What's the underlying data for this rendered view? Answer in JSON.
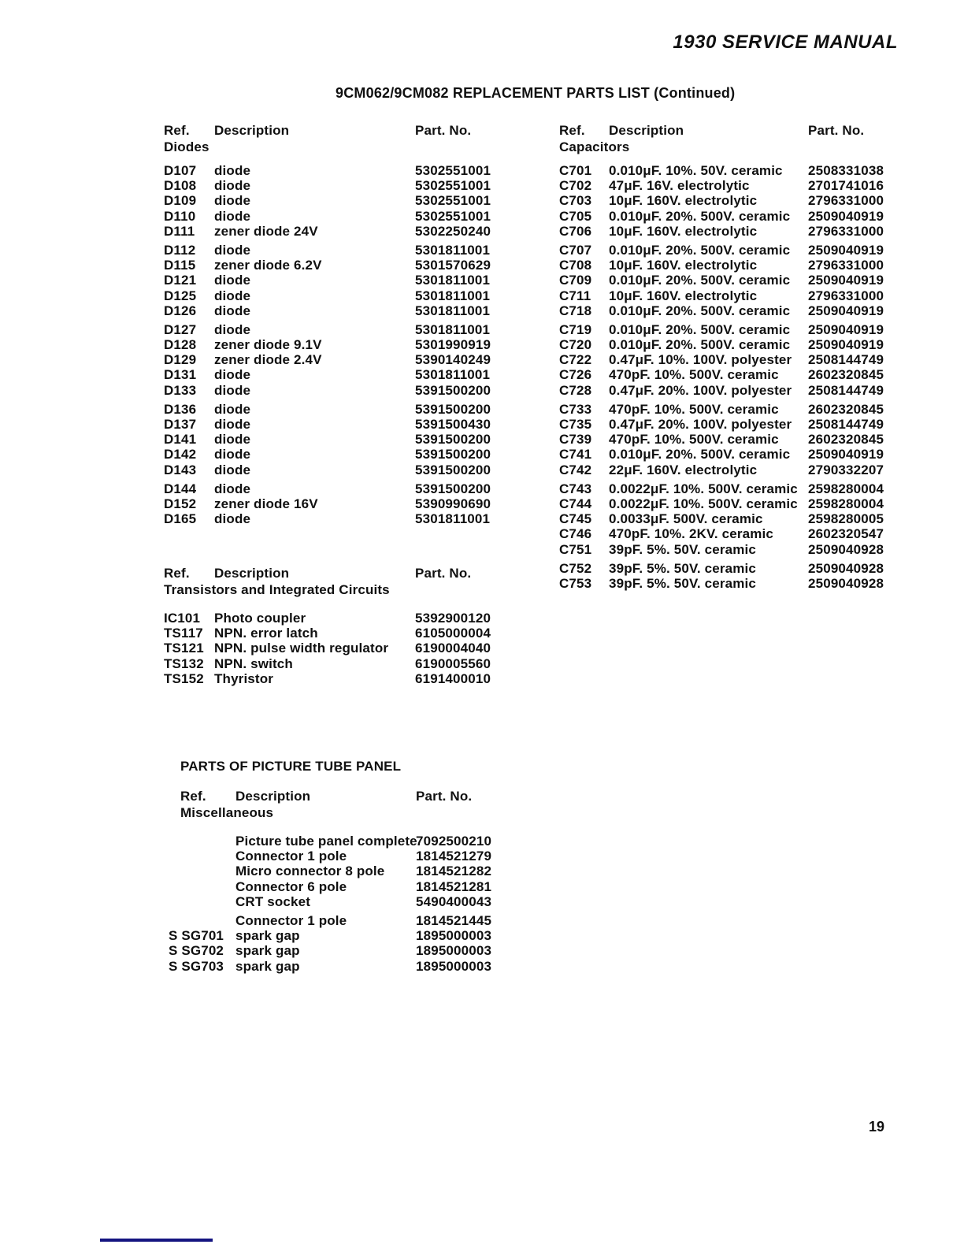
{
  "header": {
    "brand": "1930 SERVICE MANUAL"
  },
  "title": "9CM062/9CM082 REPLACEMENT PARTS LIST (Continued)",
  "col_headers": {
    "ref": "Ref.",
    "description": "Description",
    "part_no": "Part. No."
  },
  "sections": {
    "diodes": {
      "subheading": "Diodes",
      "groups": [
        [
          {
            "ref": "D107",
            "desc": "diode",
            "part": "5302551001"
          },
          {
            "ref": "D108",
            "desc": "diode",
            "part": "5302551001"
          },
          {
            "ref": "D109",
            "desc": "diode",
            "part": "5302551001"
          },
          {
            "ref": "D110",
            "desc": "diode",
            "part": "5302551001"
          },
          {
            "ref": "D111",
            "desc": "zener diode 24V",
            "part": "5302250240"
          }
        ],
        [
          {
            "ref": "D112",
            "desc": "diode",
            "part": "5301811001"
          },
          {
            "ref": "D115",
            "desc": "zener diode 6.2V",
            "part": "5301570629"
          },
          {
            "ref": "D121",
            "desc": "diode",
            "part": "5301811001"
          },
          {
            "ref": "D125",
            "desc": "diode",
            "part": "5301811001"
          },
          {
            "ref": "D126",
            "desc": "diode",
            "part": "5301811001"
          }
        ],
        [
          {
            "ref": "D127",
            "desc": "diode",
            "part": "5301811001"
          },
          {
            "ref": "D128",
            "desc": "zener diode 9.1V",
            "part": "5301990919"
          },
          {
            "ref": "D129",
            "desc": "zener diode 2.4V",
            "part": "5390140249"
          },
          {
            "ref": "D131",
            "desc": "diode",
            "part": "5301811001"
          },
          {
            "ref": "D133",
            "desc": "diode",
            "part": "5391500200"
          }
        ],
        [
          {
            "ref": "D136",
            "desc": "diode",
            "part": "5391500200"
          },
          {
            "ref": "D137",
            "desc": "diode",
            "part": "5391500430"
          },
          {
            "ref": "D141",
            "desc": "diode",
            "part": "5391500200"
          },
          {
            "ref": "D142",
            "desc": "diode",
            "part": "5391500200"
          },
          {
            "ref": "D143",
            "desc": "diode",
            "part": "5391500200"
          }
        ],
        [
          {
            "ref": "D144",
            "desc": "diode",
            "part": "5391500200"
          },
          {
            "ref": "D152",
            "desc": "zener diode 16V",
            "part": "5390990690"
          },
          {
            "ref": "D165",
            "desc": "diode",
            "part": "5301811001"
          }
        ]
      ]
    },
    "capacitors": {
      "subheading": "Capacitors",
      "groups": [
        [
          {
            "ref": "C701",
            "desc": "0.010μF. 10%. 50V. ceramic",
            "part": "2508331038"
          },
          {
            "ref": "C702",
            "desc": "47μF. 16V. electrolytic",
            "part": "2701741016"
          },
          {
            "ref": "C703",
            "desc": "10μF. 160V. electrolytic",
            "part": "2796331000"
          },
          {
            "ref": "C705",
            "desc": "0.010μF. 20%. 500V. ceramic",
            "part": "2509040919"
          },
          {
            "ref": "C706",
            "desc": "10μF. 160V. electrolytic",
            "part": "2796331000"
          }
        ],
        [
          {
            "ref": "C707",
            "desc": "0.010μF. 20%. 500V. ceramic",
            "part": "2509040919"
          },
          {
            "ref": "C708",
            "desc": "10μF. 160V. electrolytic",
            "part": "2796331000"
          },
          {
            "ref": "C709",
            "desc": "0.010μF. 20%. 500V. ceramic",
            "part": "2509040919"
          },
          {
            "ref": "C711",
            "desc": "10μF. 160V. electrolytic",
            "part": "2796331000"
          },
          {
            "ref": "C718",
            "desc": "0.010μF. 20%. 500V. ceramic",
            "part": "2509040919"
          }
        ],
        [
          {
            "ref": "C719",
            "desc": "0.010μF. 20%. 500V. ceramic",
            "part": "2509040919"
          },
          {
            "ref": "C720",
            "desc": "0.010μF. 20%. 500V. ceramic",
            "part": "2509040919"
          },
          {
            "ref": "C722",
            "desc": "0.47μF. 10%. 100V. polyester",
            "part": "2508144749"
          },
          {
            "ref": "C726",
            "desc": "470pF. 10%. 500V. ceramic",
            "part": "2602320845"
          },
          {
            "ref": "C728",
            "desc": "0.47μF. 20%. 100V. polyester",
            "part": "2508144749"
          }
        ],
        [
          {
            "ref": "C733",
            "desc": "470pF. 10%. 500V. ceramic",
            "part": "2602320845"
          },
          {
            "ref": "C735",
            "desc": "0.47μF. 20%. 100V. polyester",
            "part": "2508144749"
          },
          {
            "ref": "C739",
            "desc": "470pF. 10%. 500V. ceramic",
            "part": "2602320845"
          },
          {
            "ref": "C741",
            "desc": "0.010μF. 20%. 500V. ceramic",
            "part": "2509040919"
          },
          {
            "ref": "C742",
            "desc": "22μF. 160V. electrolytic",
            "part": "2790332207"
          }
        ],
        [
          {
            "ref": "C743",
            "desc": "0.0022μF. 10%. 500V. ceramic",
            "part": "2598280004"
          },
          {
            "ref": "C744",
            "desc": "0.0022μF. 10%. 500V. ceramic",
            "part": "2598280004"
          },
          {
            "ref": "C745",
            "desc": "0.0033μF. 500V. ceramic",
            "part": "2598280005"
          },
          {
            "ref": "C746",
            "desc": "470pF. 10%. 2KV. ceramic",
            "part": "2602320547"
          },
          {
            "ref": "C751",
            "desc": "39pF. 5%. 50V. ceramic",
            "part": "2509040928"
          }
        ],
        [
          {
            "ref": "C752",
            "desc": "39pF. 5%. 50V. ceramic",
            "part": "2509040928"
          },
          {
            "ref": "C753",
            "desc": "39pF. 5%. 50V. ceramic",
            "part": "2509040928"
          }
        ]
      ]
    },
    "transistors": {
      "subheading": "Transistors and Integrated Circuits",
      "groups": [
        [
          {
            "ref": "IC101",
            "desc": "Photo coupler",
            "part": "5392900120"
          },
          {
            "ref": "TS117",
            "desc": "NPN. error latch",
            "part": "6105000004"
          },
          {
            "ref": "TS121",
            "desc": "NPN. pulse width regulator",
            "part": "6190004040"
          },
          {
            "ref": "TS132",
            "desc": "NPN. switch",
            "part": "6190005560"
          },
          {
            "ref": "TS152",
            "desc": "Thyristor",
            "part": "6191400010"
          }
        ]
      ]
    },
    "picture_tube": {
      "heading": "PARTS OF PICTURE TUBE PANEL",
      "subheading": "Miscellaneous",
      "groups": [
        [
          {
            "ref": "",
            "desc": "Picture tube panel complete",
            "part": "7092500210"
          },
          {
            "ref": "",
            "desc": "Connector 1 pole",
            "part": "1814521279"
          },
          {
            "ref": "",
            "desc": "Micro connector 8 pole",
            "part": "1814521282"
          },
          {
            "ref": "",
            "desc": "Connector 6 pole",
            "part": "1814521281"
          },
          {
            "ref": "",
            "desc": "CRT socket",
            "part": "5490400043"
          }
        ],
        [
          {
            "ref": "",
            "desc": "Connector 1 pole",
            "part": "1814521445"
          },
          {
            "ref": "S SG701",
            "desc": "spark gap",
            "part": "1895000003"
          },
          {
            "ref": "S SG702",
            "desc": "spark gap",
            "part": "1895000003"
          },
          {
            "ref": "S SG703",
            "desc": "spark gap",
            "part": "1895000003"
          }
        ]
      ]
    }
  },
  "footer": {
    "page_number": "19"
  },
  "decor": {
    "bar_color": "#141480"
  }
}
